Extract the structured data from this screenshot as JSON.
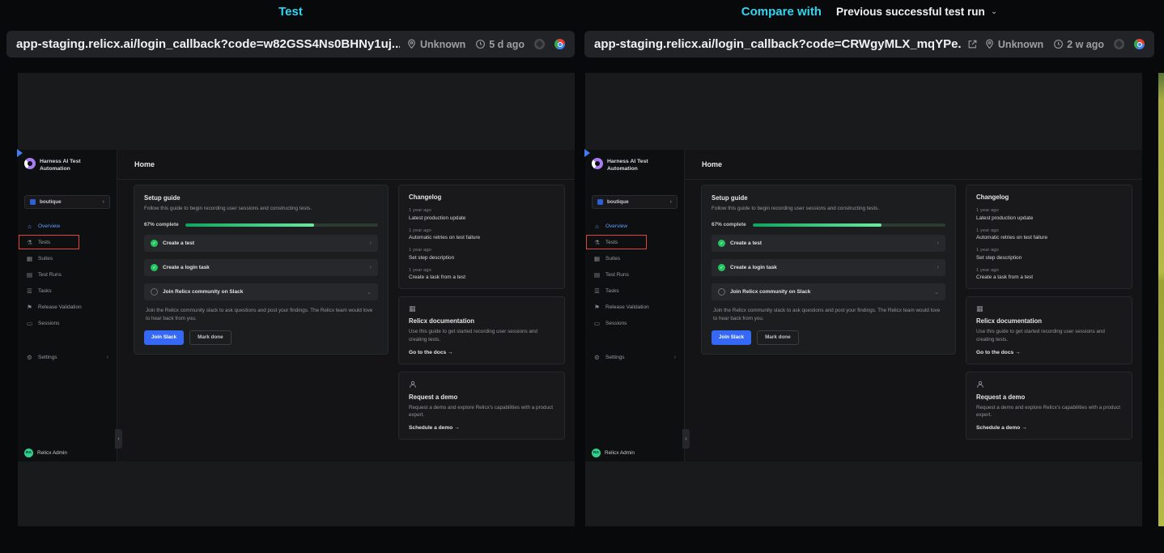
{
  "colors": {
    "accent_cyan": "#2fd6f2",
    "highlight_red": "#e0443e",
    "progress_green": "#22c55e",
    "slack_button_blue": "#3468f5"
  },
  "header": {
    "test_label": "Test",
    "compare_label": "Compare with",
    "compare_value": "Previous successful test run"
  },
  "panes": {
    "left": {
      "url": "app-staging.relicx.ai/login_callback?code=w82GSS4Ns0BHNy1uj...",
      "location": "Unknown",
      "age": "5 d ago"
    },
    "right": {
      "url": "app-staging.relicx.ai/login_callback?code=CRWgyMLX_mqYPe...",
      "location": "Unknown",
      "age": "2 w ago"
    }
  },
  "app": {
    "brand": "Harness AI Test Automation",
    "project": "boutique",
    "page_title": "Home",
    "nav": [
      {
        "label": "Overview"
      },
      {
        "label": "Tests"
      },
      {
        "label": "Suites"
      },
      {
        "label": "Test Runs"
      },
      {
        "label": "Tasks"
      },
      {
        "label": "Release Validation"
      },
      {
        "label": "Sessions"
      },
      {
        "label": "Settings"
      }
    ],
    "user": {
      "initials": "RA",
      "name": "Relicx Admin"
    },
    "setup_guide": {
      "title": "Setup guide",
      "subtitle": "Follow this guide to begin recording user sessions and constructing tests.",
      "progress_label": "67% complete",
      "progress_pct": 67,
      "items": [
        {
          "label": "Create a test",
          "done": true
        },
        {
          "label": "Create a login task",
          "done": true
        },
        {
          "label": "Join Relicx community on Slack",
          "done": false
        }
      ],
      "slack_description": "Join the Relicx community slack to ask questions and post your findings. The Relicx team would love to hear back from you.",
      "join_slack_label": "Join Slack",
      "mark_done_label": "Mark done"
    },
    "changelog": {
      "title": "Changelog",
      "entries": [
        {
          "age": "1 year ago",
          "text": "Latest production update"
        },
        {
          "age": "1 year ago",
          "text": "Automatic retries on test failure"
        },
        {
          "age": "1 year ago",
          "text": "Set step description"
        },
        {
          "age": "1 year ago",
          "text": "Create a task from a test"
        }
      ]
    },
    "documentation": {
      "title": "Relicx documentation",
      "text": "Use this guide to get started recording user sessions and creating tests.",
      "link": "Go to the docs →"
    },
    "demo": {
      "title": "Request a demo",
      "text": "Request a demo and explore Relicx's capabilities with a product expert.",
      "link": "Schedule a demo →"
    }
  }
}
